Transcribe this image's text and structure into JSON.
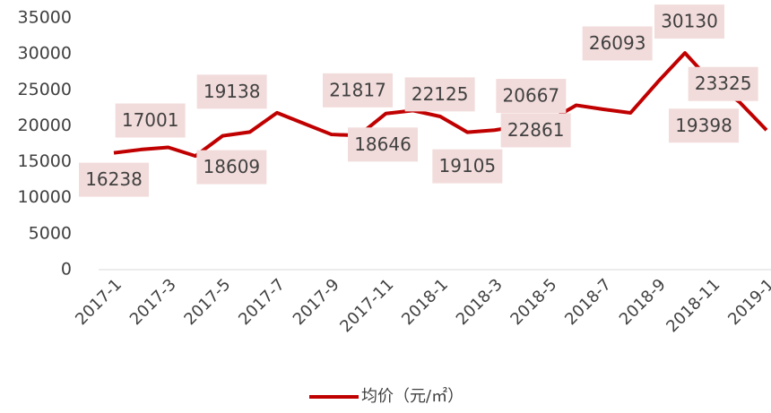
{
  "chart_data": {
    "type": "line",
    "categories": [
      "2017-1",
      null,
      "2017-3",
      null,
      "2017-5",
      null,
      "2017-7",
      null,
      "2017-9",
      null,
      "2017-11",
      null,
      "2018-1",
      null,
      "2018-3",
      null,
      "2018-5",
      null,
      "2018-7",
      null,
      "2018-9",
      null,
      "2018-11",
      null,
      "2019-1"
    ],
    "series": [
      {
        "name": "均价（元/㎡）",
        "color": "#c00000",
        "values": [
          16238,
          16700,
          17001,
          15800,
          18609,
          19138,
          21817,
          20300,
          18800,
          18646,
          21700,
          22125,
          21300,
          19105,
          19400,
          20000,
          20667,
          22861,
          22300,
          21800,
          26093,
          30130,
          26000,
          23325,
          19398
        ],
        "value_labels": [
          "16238",
          null,
          "17001",
          null,
          "18609",
          "19138",
          "21817",
          null,
          null,
          "18646",
          null,
          "22125",
          null,
          "19105",
          null,
          null,
          "20667",
          "22861",
          null,
          null,
          "26093",
          "30130",
          null,
          "23325",
          "19398"
        ]
      }
    ],
    "ylim": [
      0,
      35000
    ],
    "yticks": [
      0,
      5000,
      10000,
      15000,
      20000,
      25000,
      30000,
      35000
    ],
    "grid": false,
    "legend": "bottom"
  }
}
